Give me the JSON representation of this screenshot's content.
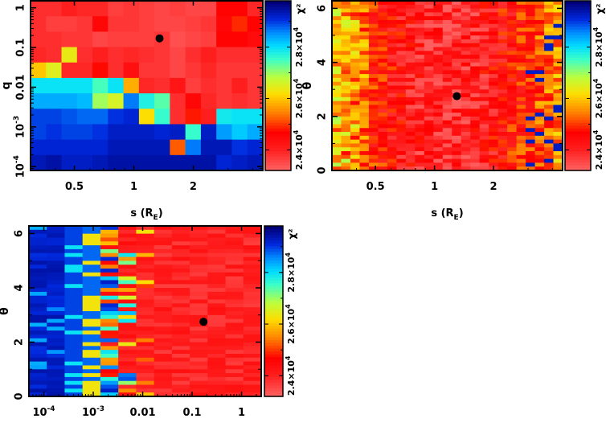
{
  "chart_data": [
    {
      "type": "heatmap",
      "panel": "top-left",
      "xlabel": "s (R_E)",
      "ylabel": "q",
      "x_scale": "log",
      "y_scale": "log",
      "xlim": [
        0.3,
        4.5
      ],
      "ylim": [
        8e-05,
        1.5
      ],
      "x_ticks": [
        {
          "value": 0.5,
          "label": "0.5"
        },
        {
          "value": 1,
          "label": "1"
        },
        {
          "value": 2,
          "label": "2"
        }
      ],
      "y_ticks": [
        {
          "value": 0.0001,
          "label": "10",
          "sup": "-4"
        },
        {
          "value": 0.001,
          "label": "10",
          "sup": "-3"
        },
        {
          "value": 0.01,
          "label": "0.01"
        },
        {
          "value": 0.1,
          "label": "0.1"
        },
        {
          "value": 1,
          "label": "1"
        }
      ],
      "colorbar": {
        "label": "χ²",
        "ticks": [
          {
            "value": 2.4,
            "label": "2.4×10",
            "sup": "4"
          },
          {
            "value": 2.6,
            "label": "2.6×10",
            "sup": "4"
          },
          {
            "value": 2.8,
            "label": "2.8×10",
            "sup": "4"
          }
        ],
        "range": [
          2.32,
          2.98
        ],
        "units": "1e4"
      },
      "best_fit": {
        "x": 1.35,
        "y": 0.17
      },
      "grid_values_1e4": [
        [
          2.38,
          2.38,
          2.4,
          2.39,
          2.39,
          2.36,
          2.37,
          2.36,
          2.35,
          2.36,
          2.35,
          2.35,
          2.46,
          2.46,
          2.39
        ],
        [
          2.38,
          2.36,
          2.36,
          2.37,
          2.45,
          2.37,
          2.37,
          2.36,
          2.35,
          2.35,
          2.36,
          2.37,
          2.45,
          2.49,
          2.46
        ],
        [
          2.38,
          2.38,
          2.37,
          2.37,
          2.35,
          2.36,
          2.36,
          2.36,
          2.37,
          2.34,
          2.35,
          2.36,
          2.46,
          2.46,
          2.44
        ],
        [
          2.39,
          2.38,
          2.64,
          2.38,
          2.4,
          2.38,
          2.39,
          2.38,
          2.37,
          2.35,
          2.38,
          2.4,
          2.38,
          2.38,
          2.38
        ],
        [
          2.6,
          2.65,
          2.39,
          2.39,
          2.47,
          2.38,
          2.43,
          2.37,
          2.37,
          2.35,
          2.37,
          2.39,
          2.37,
          2.37,
          2.37
        ],
        [
          2.8,
          2.8,
          2.8,
          2.8,
          2.75,
          2.8,
          2.58,
          2.39,
          2.38,
          2.42,
          2.36,
          2.38,
          2.37,
          2.4,
          2.37
        ],
        [
          2.84,
          2.84,
          2.84,
          2.83,
          2.7,
          2.66,
          2.87,
          2.78,
          2.74,
          2.38,
          2.45,
          2.39,
          2.37,
          2.38,
          2.37
        ],
        [
          2.9,
          2.9,
          2.89,
          2.88,
          2.88,
          2.91,
          2.92,
          2.62,
          2.76,
          2.38,
          2.48,
          2.4,
          2.79,
          2.8,
          2.8
        ],
        [
          2.9,
          2.91,
          2.9,
          2.9,
          2.91,
          2.93,
          2.93,
          2.93,
          2.92,
          2.93,
          2.76,
          2.93,
          2.85,
          2.82,
          2.84
        ],
        [
          2.92,
          2.92,
          2.92,
          2.92,
          2.92,
          2.94,
          2.94,
          2.94,
          2.94,
          2.52,
          2.87,
          2.94,
          2.94,
          2.91,
          2.92
        ],
        [
          2.94,
          2.95,
          2.93,
          2.93,
          2.94,
          2.95,
          2.95,
          2.95,
          2.95,
          2.95,
          2.95,
          2.95,
          2.92,
          2.93,
          2.94
        ]
      ]
    },
    {
      "type": "heatmap",
      "panel": "top-right",
      "xlabel": "s (R_E)",
      "ylabel": "θ",
      "x_scale": "log",
      "y_scale": "linear",
      "xlim": [
        0.3,
        4.5
      ],
      "ylim": [
        0,
        6.28
      ],
      "x_ticks": [
        {
          "value": 0.5,
          "label": "0.5"
        },
        {
          "value": 1,
          "label": "1"
        },
        {
          "value": 2,
          "label": "2"
        }
      ],
      "y_ticks": [
        {
          "value": 0,
          "label": "0"
        },
        {
          "value": 2,
          "label": "2"
        },
        {
          "value": 4,
          "label": "4"
        },
        {
          "value": 6,
          "label": "6"
        }
      ],
      "colorbar": {
        "label": "χ²",
        "ticks": [
          {
            "value": 2.4,
            "label": "2.4×10",
            "sup": "4"
          },
          {
            "value": 2.6,
            "label": "2.6×10",
            "sup": "4"
          },
          {
            "value": 2.8,
            "label": "2.8×10",
            "sup": "4"
          }
        ],
        "range": [
          2.32,
          2.98
        ],
        "units": "1e4"
      },
      "best_fit": {
        "x": 1.3,
        "y": 2.75
      },
      "grid_description": "noisy map, mostly red/orange (χ² ≈ 2.35–2.50×10⁴) near s≈1, yellow/cyan at small and large s",
      "seed": 7
    },
    {
      "type": "heatmap",
      "panel": "bottom-left",
      "xlabel": "q",
      "ylabel": "θ",
      "x_scale": "log",
      "y_scale": "linear",
      "xlim": [
        5e-05,
        2.5
      ],
      "ylim": [
        0,
        6.28
      ],
      "x_ticks": [
        {
          "value": 0.0001,
          "label": "10",
          "sup": "-4"
        },
        {
          "value": 0.001,
          "label": "10",
          "sup": "-3"
        },
        {
          "value": 0.01,
          "label": "0.01"
        },
        {
          "value": 0.1,
          "label": "0.1"
        },
        {
          "value": 1,
          "label": "1"
        }
      ],
      "y_ticks": [
        {
          "value": 0,
          "label": "0"
        },
        {
          "value": 2,
          "label": "2"
        },
        {
          "value": 4,
          "label": "4"
        },
        {
          "value": 6,
          "label": "6"
        }
      ],
      "colorbar": {
        "label": "χ²",
        "ticks": [
          {
            "value": 2.4,
            "label": "2.4×10",
            "sup": "4"
          },
          {
            "value": 2.6,
            "label": "2.6×10",
            "sup": "4"
          },
          {
            "value": 2.8,
            "label": "2.8×10",
            "sup": "4"
          }
        ],
        "range": [
          2.32,
          2.98
        ],
        "units": "1e4"
      },
      "best_fit": {
        "x": 0.17,
        "y": 2.75
      },
      "grid_description": "dark blue (high χ²) for q < 10⁻³, mixed cyan/yellow near q≈10⁻³–0.01, red (low χ²) for q > 0.01",
      "seed": 13
    }
  ]
}
